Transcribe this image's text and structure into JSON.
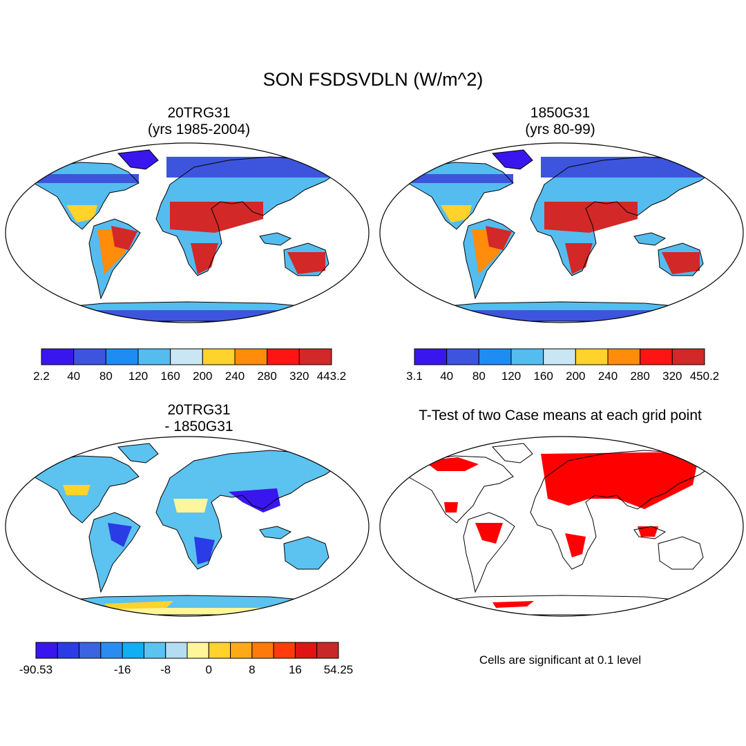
{
  "main_title": "SON FSDSVDLN (W/m^2)",
  "panels": {
    "top_left": {
      "title_line1": "20TRG31",
      "title_line2": "(yrs 1985-2004)"
    },
    "top_right": {
      "title_line1": "1850G31",
      "title_line2": "(yrs 80-99)"
    },
    "bottom_left": {
      "title_line1": "20TRG31",
      "title_line2": "- 1850G31"
    },
    "bottom_right": {
      "title": "T-Test of two Case means at each grid point",
      "note": "Cells are significant at 0.1 level"
    }
  },
  "colorbars": {
    "top_left": {
      "colors": [
        "#3a16ee",
        "#3d55dc",
        "#1e8cf0",
        "#55bcf0",
        "#c8e6f4",
        "#ffd22c",
        "#ff8c0a",
        "#ff1414",
        "#d22828"
      ],
      "labels": [
        "2.2",
        "40",
        "80",
        "120",
        "160",
        "200",
        "240",
        "280",
        "320",
        "443.2"
      ]
    },
    "top_right": {
      "colors": [
        "#3a16ee",
        "#3d55dc",
        "#1e8cf0",
        "#55bcf0",
        "#c8e6f4",
        "#ffd22c",
        "#ff8c0a",
        "#ff1414",
        "#d22828"
      ],
      "labels": [
        "3.1",
        "40",
        "80",
        "120",
        "160",
        "200",
        "240",
        "280",
        "320",
        "450.2"
      ]
    },
    "bottom_left": {
      "colors": [
        "#3a16ee",
        "#2a3ce6",
        "#3a64e0",
        "#2a8cf0",
        "#10aef2",
        "#5cc2f0",
        "#b4dcf2",
        "#fff59a",
        "#ffd22c",
        "#ffaa14",
        "#ff7a0a",
        "#ff3c0a",
        "#e01414",
        "#c82828"
      ],
      "labels": [
        "-90.53",
        "-16",
        "-8",
        "0",
        "8",
        "16",
        "54.25"
      ]
    }
  },
  "map_colors": {
    "ocean": "#ffffff",
    "outline": "#000000",
    "significant": "#ff0000"
  }
}
